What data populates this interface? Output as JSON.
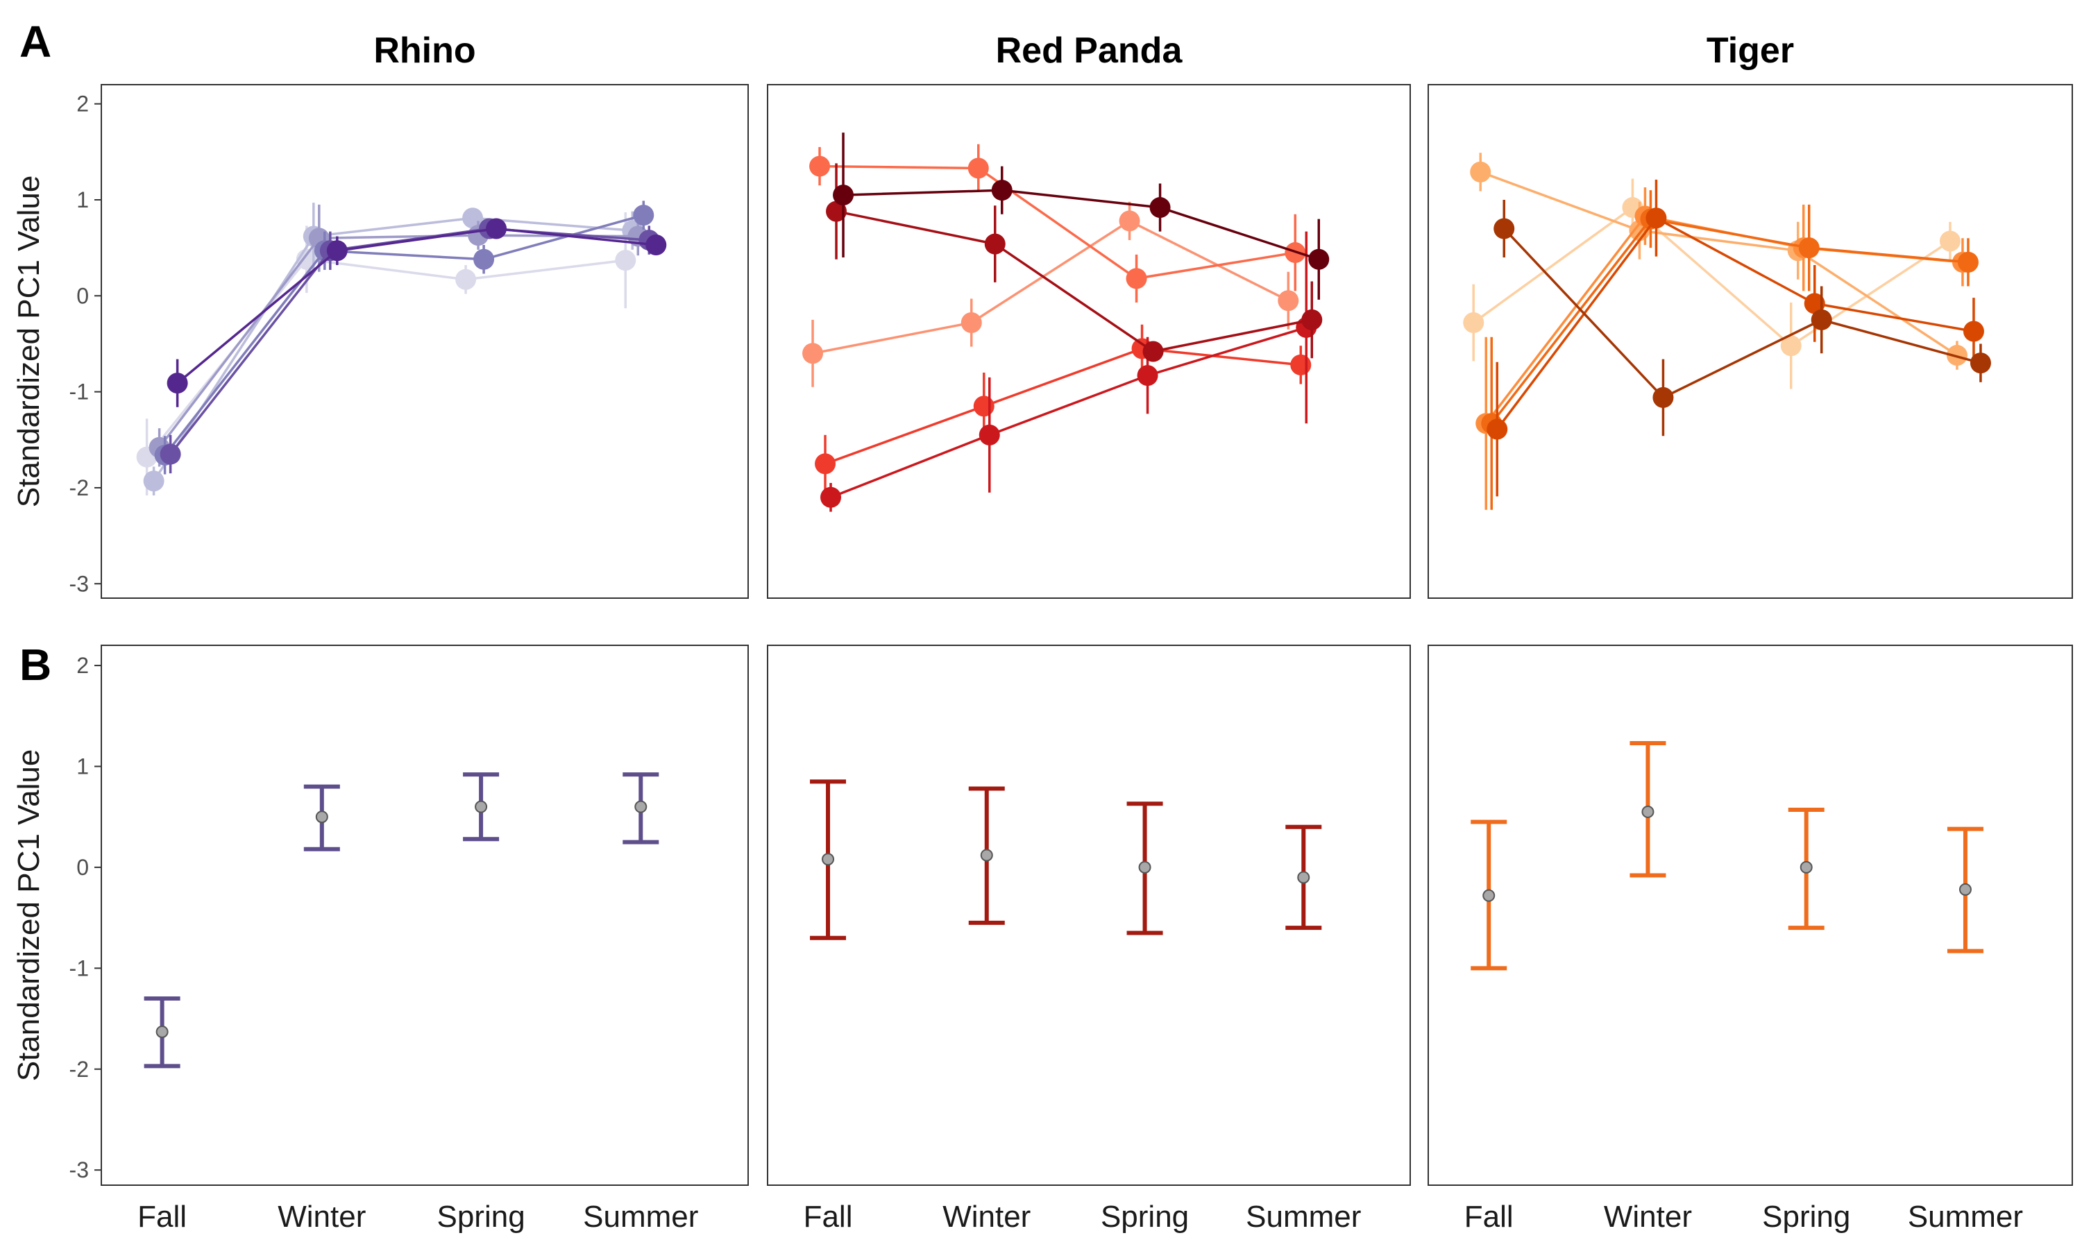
{
  "figure": {
    "row_labels": [
      "A",
      "B"
    ],
    "y_axis_title": "Standardized PC1 Value",
    "y_ticks": [
      2,
      1,
      0,
      -1,
      -2,
      -3
    ],
    "y_range": [
      -3.15,
      2.2
    ],
    "x_categories": [
      "Fall",
      "Winter",
      "Spring",
      "Summer"
    ]
  },
  "chart_data": [
    {
      "type": "line",
      "row": "A",
      "title": "Rhino",
      "categories": [
        "Fall",
        "Winter",
        "Spring",
        "Summer"
      ],
      "ylim": [
        -3.15,
        2.2
      ],
      "ylabel": "Standardized PC1 Value",
      "series": [
        {
          "color": "#dadaeb",
          "values": [
            -1.68,
            0.38,
            0.17,
            0.37
          ],
          "err": [
            0.4,
            0.35,
            0.15,
            0.5
          ]
        },
        {
          "color": "#bcbddc",
          "values": [
            -1.93,
            0.62,
            0.81,
            0.68
          ],
          "err": [
            0.15,
            0.35,
            0.1,
            0.2
          ]
        },
        {
          "color": "#9e9ac8",
          "values": [
            -1.58,
            0.6,
            0.63,
            0.62
          ],
          "err": [
            0.2,
            0.35,
            0.15,
            0.2
          ]
        },
        {
          "color": "#807dba",
          "values": [
            -1.66,
            0.47,
            0.38,
            0.84
          ],
          "err": [
            0.2,
            0.2,
            0.15,
            0.15
          ]
        },
        {
          "color": "#6a51a3",
          "values": [
            -1.65,
            0.47,
            0.7,
            0.58
          ],
          "err": [
            0.2,
            0.2,
            0.1,
            0.15
          ]
        },
        {
          "color": "#54278f",
          "values": [
            -0.91,
            0.47,
            0.7,
            0.53
          ],
          "err": [
            0.25,
            0.15,
            0.1,
            0.1
          ]
        }
      ]
    },
    {
      "type": "line",
      "row": "A",
      "title": "Red Panda",
      "categories": [
        "Fall",
        "Winter",
        "Spring",
        "Summer"
      ],
      "ylim": [
        -3.15,
        2.2
      ],
      "series": [
        {
          "color": "#fc9272",
          "values": [
            -0.6,
            -0.28,
            0.78,
            -0.05
          ],
          "err": [
            0.35,
            0.25,
            0.2,
            0.3
          ]
        },
        {
          "color": "#fb6a4a",
          "values": [
            1.35,
            1.33,
            0.18,
            0.45
          ],
          "err": [
            0.2,
            0.25,
            0.25,
            0.4
          ]
        },
        {
          "color": "#ef3b2c",
          "values": [
            -1.75,
            -1.15,
            -0.55,
            -0.72
          ],
          "err": [
            0.3,
            0.35,
            0.25,
            0.2
          ]
        },
        {
          "color": "#cb181d",
          "values": [
            -2.1,
            -1.45,
            -0.83,
            -0.33
          ],
          "err": [
            0.15,
            0.6,
            0.4,
            1.0
          ]
        },
        {
          "color": "#a50f15",
          "values": [
            0.88,
            0.54,
            -0.58,
            -0.25
          ],
          "err": [
            0.5,
            0.4,
            0.1,
            0.4
          ]
        },
        {
          "color": "#67000d",
          "values": [
            1.05,
            1.1,
            0.92,
            0.38
          ],
          "err": [
            0.65,
            0.25,
            0.25,
            0.42
          ]
        }
      ]
    },
    {
      "type": "line",
      "row": "A",
      "title": "Tiger",
      "categories": [
        "Fall",
        "Winter",
        "Spring",
        "Summer"
      ],
      "ylim": [
        -3.15,
        2.2
      ],
      "series": [
        {
          "color": "#fdd0a2",
          "values": [
            -0.28,
            0.92,
            -0.52,
            0.57
          ],
          "err": [
            0.4,
            0.3,
            0.45,
            0.2
          ]
        },
        {
          "color": "#fdae6b",
          "values": [
            1.29,
            0.68,
            0.47,
            -0.62
          ],
          "err": [
            0.2,
            0.3,
            0.3,
            0.15
          ]
        },
        {
          "color": "#fd8d3c",
          "values": [
            -1.33,
            0.83,
            0.5,
            0.35
          ],
          "err": [
            0.9,
            0.3,
            0.45,
            0.25
          ]
        },
        {
          "color": "#f16913",
          "values": [
            -1.33,
            0.8,
            0.5,
            0.35
          ],
          "err": [
            0.9,
            0.3,
            0.45,
            0.25
          ]
        },
        {
          "color": "#d94801",
          "values": [
            -1.39,
            0.81,
            -0.08,
            -0.37
          ],
          "err": [
            0.7,
            0.4,
            0.4,
            0.35
          ]
        },
        {
          "color": "#a63603",
          "values": [
            0.7,
            -1.06,
            -0.25,
            -0.7
          ],
          "err": [
            0.3,
            0.4,
            0.35,
            0.2
          ]
        }
      ]
    },
    {
      "type": "errorbar",
      "row": "B",
      "title": "Rhino",
      "categories": [
        "Fall",
        "Winter",
        "Spring",
        "Summer"
      ],
      "ylim": [
        -3.15,
        2.2
      ],
      "ylabel": "Standardized PC1 Value",
      "color": "#5e4f8c",
      "values": [
        -1.63,
        0.5,
        0.6,
        0.6
      ],
      "lower": [
        -1.97,
        0.18,
        0.28,
        0.25
      ],
      "upper": [
        -1.3,
        0.8,
        0.92,
        0.92
      ]
    },
    {
      "type": "errorbar",
      "row": "B",
      "title": "Red Panda",
      "categories": [
        "Fall",
        "Winter",
        "Spring",
        "Summer"
      ],
      "ylim": [
        -3.15,
        2.2
      ],
      "color": "#a31a11",
      "values": [
        0.08,
        0.12,
        0.0,
        -0.1
      ],
      "lower": [
        -0.7,
        -0.55,
        -0.65,
        -0.6
      ],
      "upper": [
        0.85,
        0.78,
        0.63,
        0.4
      ]
    },
    {
      "type": "errorbar",
      "row": "B",
      "title": "Tiger",
      "categories": [
        "Fall",
        "Winter",
        "Spring",
        "Summer"
      ],
      "ylim": [
        -3.15,
        2.2
      ],
      "color": "#ef6c1c",
      "values": [
        -0.28,
        0.55,
        0.0,
        -0.22
      ],
      "lower": [
        -1.0,
        -0.08,
        -0.6,
        -0.83
      ],
      "upper": [
        0.45,
        1.23,
        0.57,
        0.38
      ]
    }
  ]
}
